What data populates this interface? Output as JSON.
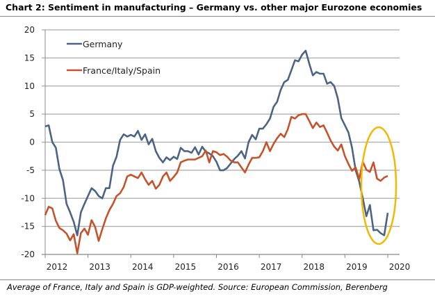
{
  "title": "Chart 2: Sentiment in manufacturing – Germany vs. other major Eurozone economies",
  "footnote": "Average of France, Italy and Spain is GDP-weighted. Source: European Commission, Berenberg",
  "chart_data": {
    "type": "line",
    "title": "Chart 2: Sentiment in manufacturing – Germany vs. other major Eurozone economies",
    "xlabel": "",
    "ylabel": "",
    "ylim": [
      -20,
      20
    ],
    "xlim": [
      2012,
      2020
    ],
    "yticks": [
      "20",
      "15",
      "10",
      "5",
      "0",
      "-5",
      "-10",
      "-15",
      "-20"
    ],
    "xticks": [
      "2012",
      "2013",
      "2014",
      "2015",
      "2016",
      "2017",
      "2018",
      "2019",
      "2020"
    ],
    "grid": "horizontal",
    "legend_position": "top-left",
    "x_start": 2012.0,
    "x_step_months": 1,
    "series": [
      {
        "name": "Germany",
        "color": "#4b6385",
        "values": [
          2.8,
          3.0,
          0,
          -1,
          -4.8,
          -6.8,
          -11,
          -12.5,
          -14.2,
          -16.6,
          -12.5,
          -11,
          -9.6,
          -8.2,
          -8.7,
          -9.6,
          -10,
          -8.2,
          -8.2,
          -4.2,
          -2.6,
          0.4,
          1.4,
          1.0,
          1.3,
          1.0,
          2.0,
          0.4,
          1.4,
          -0.4,
          0.6,
          -1.6,
          -2.8,
          -3.6,
          -2.7,
          -3.2,
          -2.6,
          -3.0,
          -1.0,
          -1.6,
          -1.6,
          -1.9,
          -0.9,
          -2.2,
          -0.8,
          -1.7,
          -2.0,
          -2.5,
          -3.5,
          -5,
          -5,
          -4.6,
          -3.8,
          -3.0,
          -2.4,
          -1.6,
          -2.9,
          0,
          1.3,
          0.5,
          2.4,
          2.4,
          3.2,
          4.2,
          6.3,
          7.2,
          9.3,
          10.7,
          11.1,
          12.8,
          14.6,
          14.4,
          15.6,
          16.3,
          14.0,
          11.9,
          12.5,
          12.2,
          12.2,
          10.4,
          10.7,
          10.0,
          7.8,
          4.3,
          3.0,
          1.7,
          -1,
          -5,
          -7,
          -10,
          -13.2,
          -11.2,
          -15.7,
          -15.6,
          -16.2,
          -16.6,
          -12.6
        ]
      },
      {
        "name": "France/Italy/Spain",
        "color": "#c5522b",
        "values": [
          -13,
          -11.5,
          -11.8,
          -14,
          -15.3,
          -15.7,
          -16.3,
          -17.5,
          -16.4,
          -19.8,
          -16.2,
          -15.4,
          -16.5,
          -13.9,
          -15.1,
          -17.6,
          -15.5,
          -13.6,
          -12.1,
          -11,
          -9.6,
          -9.1,
          -8,
          -6.1,
          -5.8,
          -6.1,
          -6.4,
          -5.4,
          -6.6,
          -7.6,
          -6.9,
          -8.3,
          -7.6,
          -6.1,
          -5.4,
          -6.9,
          -6.2,
          -5.4,
          -3.6,
          -3.3,
          -3.1,
          -3.1,
          -3.1,
          -2.8,
          -2.5,
          -1.5,
          -3.6,
          -1.6,
          -1.8,
          -2.3,
          -2.1,
          -2.6,
          -3.3,
          -3.6,
          -3.6,
          -4.5,
          -5.4,
          -4.0,
          -2.8,
          -2.8,
          -2.7,
          -1.6,
          0,
          -1.6,
          -0.3,
          0.7,
          1.5,
          0.9,
          2.3,
          4.5,
          4.2,
          4.8,
          5.0,
          5.0,
          3.8,
          2.5,
          3.5,
          2.7,
          3.0,
          1.7,
          0.3,
          -0.8,
          -1.5,
          -0.4,
          -2.5,
          -3.9,
          -5.1,
          -4.5,
          -6.6,
          -3.5,
          -4.9,
          -5.3,
          -3.6,
          -6.5,
          -6.9,
          -6.3,
          -6.0
        ]
      }
    ],
    "annotation": {
      "type": "ellipse",
      "color": "#f5b800",
      "highlights": "2019 H2"
    }
  }
}
